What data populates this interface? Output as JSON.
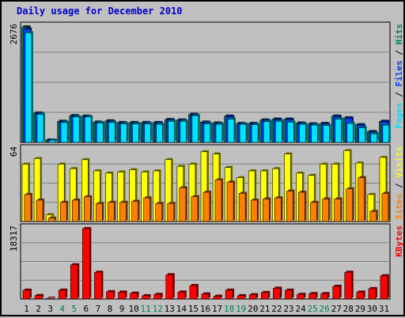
{
  "title": "Daily usage for December 2010",
  "colors": {
    "background": "#c0c0c0",
    "title": "#0000cc",
    "hits": "#00805c",
    "files": "#0040ff",
    "pages": "#00e0ff",
    "visits": "#ffff00",
    "sites": "#ff8000",
    "kbytes": "#ff0000",
    "weekend_label": "#00805c",
    "weekday_label": "#000000"
  },
  "chart_data": [
    {
      "type": "bar",
      "panel": "top",
      "title": "",
      "ymax_label": "2676",
      "ylim": [
        0,
        2676
      ],
      "legend": [
        {
          "name": "Pages",
          "color": "#00e0ff"
        },
        {
          "name": "Files",
          "color": "#0040ff"
        },
        {
          "name": "Hits",
          "color": "#00805c"
        }
      ],
      "legend_separator": " / ",
      "categories": [
        "1",
        "2",
        "3",
        "4",
        "5",
        "6",
        "7",
        "8",
        "9",
        "10",
        "11",
        "12",
        "13",
        "14",
        "15",
        "16",
        "17",
        "18",
        "19",
        "20",
        "21",
        "22",
        "23",
        "24",
        "25",
        "26",
        "27",
        "28",
        "29",
        "30",
        "31"
      ],
      "series": [
        {
          "name": "Hits",
          "values": [
            2676,
            680,
            55,
            490,
            620,
            610,
            470,
            500,
            460,
            460,
            460,
            460,
            530,
            520,
            650,
            470,
            450,
            610,
            440,
            440,
            520,
            540,
            540,
            450,
            430,
            440,
            610,
            570,
            410,
            250,
            490
          ]
        },
        {
          "name": "Files",
          "values": [
            2630,
            670,
            55,
            480,
            610,
            600,
            460,
            490,
            450,
            450,
            450,
            450,
            520,
            510,
            640,
            460,
            440,
            600,
            430,
            430,
            510,
            530,
            530,
            440,
            420,
            430,
            600,
            560,
            400,
            240,
            480
          ]
        },
        {
          "name": "Pages",
          "values": [
            2540,
            650,
            50,
            460,
            590,
            590,
            450,
            460,
            430,
            430,
            430,
            420,
            490,
            490,
            620,
            430,
            420,
            540,
            420,
            410,
            480,
            490,
            470,
            420,
            400,
            390,
            540,
            440,
            340,
            200,
            400
          ]
        }
      ]
    },
    {
      "type": "bar",
      "panel": "middle",
      "title": "",
      "ymax_label": "64",
      "ylim": [
        0,
        64
      ],
      "legend": [
        {
          "name": "Sites",
          "color": "#ff8000"
        },
        {
          "name": "Visits",
          "color": "#ffff00"
        }
      ],
      "legend_separator": " / ",
      "categories": [
        "1",
        "2",
        "3",
        "4",
        "5",
        "6",
        "7",
        "8",
        "9",
        "10",
        "11",
        "12",
        "13",
        "14",
        "15",
        "16",
        "17",
        "18",
        "19",
        "20",
        "21",
        "22",
        "23",
        "24",
        "25",
        "26",
        "27",
        "28",
        "29",
        "30",
        "31"
      ],
      "series": [
        {
          "name": "Visits",
          "values": [
            51,
            56,
            6,
            51,
            47,
            55,
            45,
            43,
            44,
            46,
            44,
            45,
            55,
            49,
            51,
            62,
            60,
            48,
            39,
            45,
            45,
            47,
            60,
            43,
            41,
            51,
            51,
            63,
            52,
            24,
            57
          ]
        },
        {
          "name": "Sites",
          "values": [
            24,
            19,
            3,
            17,
            19,
            22,
            16,
            17,
            17,
            18,
            21,
            16,
            16,
            30,
            22,
            26,
            37,
            35,
            25,
            19,
            20,
            21,
            27,
            26,
            17,
            20,
            20,
            29,
            39,
            9,
            25
          ]
        }
      ]
    },
    {
      "type": "bar",
      "panel": "bottom",
      "title": "",
      "ymax_label": "18317",
      "ylim": [
        0,
        18317
      ],
      "legend": [
        {
          "name": "KBytes",
          "color": "#ff0000"
        }
      ],
      "legend_separator": "",
      "categories": [
        "1",
        "2",
        "3",
        "4",
        "5",
        "6",
        "7",
        "8",
        "9",
        "10",
        "11",
        "12",
        "13",
        "14",
        "15",
        "16",
        "17",
        "18",
        "19",
        "20",
        "21",
        "22",
        "23",
        "24",
        "25",
        "26",
        "27",
        "28",
        "29",
        "30",
        "31"
      ],
      "series": [
        {
          "name": "KBytes",
          "values": [
            2300,
            900,
            90,
            2300,
            8900,
            18317,
            6950,
            1900,
            1800,
            1500,
            860,
            1200,
            6300,
            1800,
            3500,
            1300,
            720,
            2300,
            860,
            1100,
            1700,
            2800,
            2300,
            1200,
            1400,
            1400,
            3300,
            6950,
            1800,
            2700,
            6050
          ]
        }
      ]
    }
  ],
  "weekend_days": [
    4,
    5,
    11,
    12,
    18,
    19,
    25,
    26
  ]
}
